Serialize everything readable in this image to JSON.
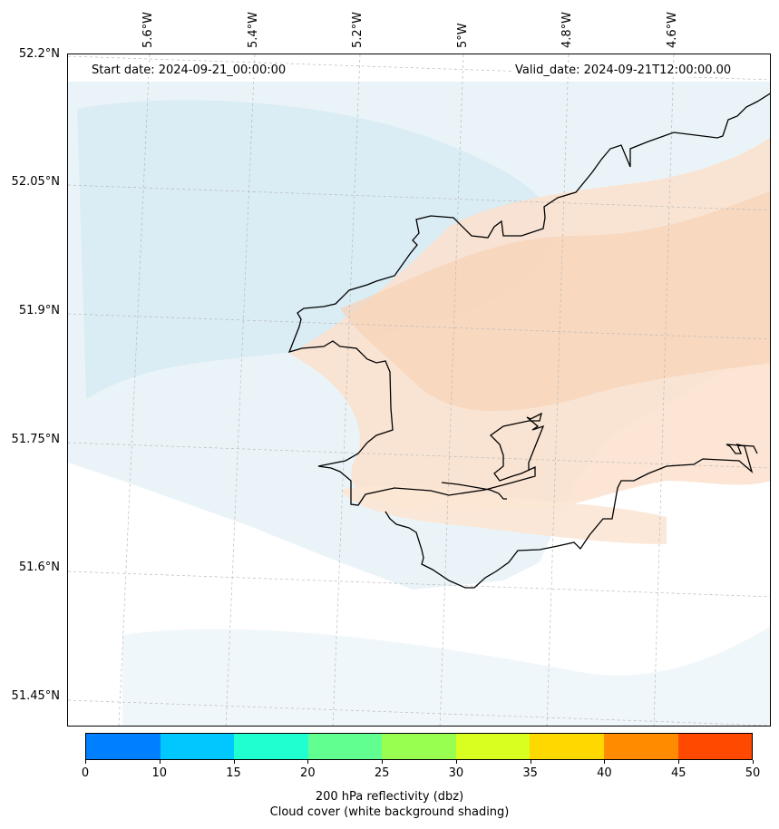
{
  "map": {
    "start_date": "Start date: 2024-09-21_00:00:00",
    "valid_date": "Valid_date: 2024-09-21T12:00:00.00",
    "lon_labels": [
      "5.6°W",
      "5.4°W",
      "5.2°W",
      "5°W",
      "4.8°W",
      "4.6°W"
    ],
    "lat_labels": [
      "52.2°N",
      "52.05°N",
      "51.9°N",
      "51.75°N",
      "51.6°N",
      "51.45°N"
    ]
  },
  "colorbar": {
    "ticks": [
      "0",
      "10",
      "15",
      "20",
      "25",
      "30",
      "35",
      "40",
      "45",
      "50"
    ],
    "colors": [
      "#0080ff",
      "#00c8ff",
      "#20ffd0",
      "#60ff90",
      "#98ff50",
      "#d8ff20",
      "#ffd800",
      "#ff8c00",
      "#ff4800"
    ],
    "label_line1": "200 hPa reflectivity (dbz)",
    "label_line2": "Cloud cover (white background shading)"
  }
}
